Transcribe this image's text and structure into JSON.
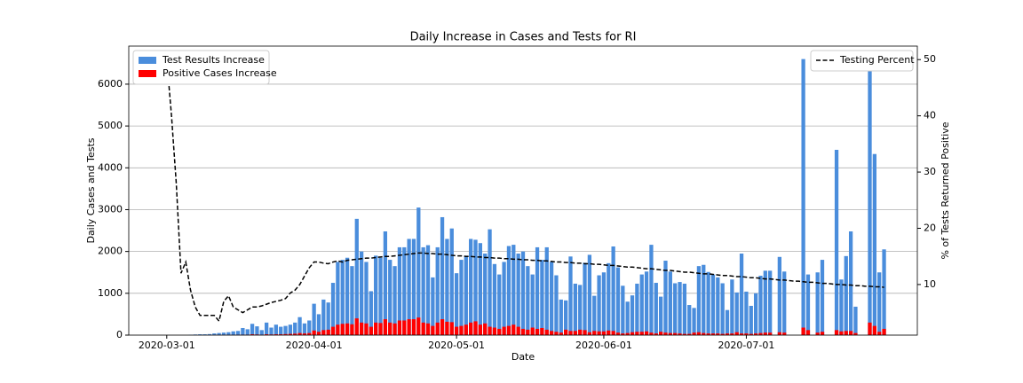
{
  "chart_data": {
    "type": "bar",
    "title": "Daily Increase in Cases and Tests for RI",
    "xlabel": "Date",
    "ylabel": "Daily Cases and Tests",
    "y2label": "% of Tests Returned Positive",
    "x": [
      "2020-03-01",
      "2020-03-02",
      "2020-03-03",
      "2020-03-04",
      "2020-03-05",
      "2020-03-06",
      "2020-03-07",
      "2020-03-08",
      "2020-03-09",
      "2020-03-10",
      "2020-03-11",
      "2020-03-12",
      "2020-03-13",
      "2020-03-14",
      "2020-03-15",
      "2020-03-16",
      "2020-03-17",
      "2020-03-18",
      "2020-03-19",
      "2020-03-20",
      "2020-03-21",
      "2020-03-22",
      "2020-03-23",
      "2020-03-24",
      "2020-03-25",
      "2020-03-26",
      "2020-03-27",
      "2020-03-28",
      "2020-03-29",
      "2020-03-30",
      "2020-03-31",
      "2020-04-01",
      "2020-04-02",
      "2020-04-03",
      "2020-04-04",
      "2020-04-05",
      "2020-04-06",
      "2020-04-07",
      "2020-04-08",
      "2020-04-09",
      "2020-04-10",
      "2020-04-11",
      "2020-04-12",
      "2020-04-13",
      "2020-04-14",
      "2020-04-15",
      "2020-04-16",
      "2020-04-17",
      "2020-04-18",
      "2020-04-19",
      "2020-04-20",
      "2020-04-21",
      "2020-04-22",
      "2020-04-23",
      "2020-04-24",
      "2020-04-25",
      "2020-04-26",
      "2020-04-27",
      "2020-04-28",
      "2020-04-29",
      "2020-04-30",
      "2020-05-01",
      "2020-05-02",
      "2020-05-03",
      "2020-05-04",
      "2020-05-05",
      "2020-05-06",
      "2020-05-07",
      "2020-05-08",
      "2020-05-09",
      "2020-05-10",
      "2020-05-11",
      "2020-05-12",
      "2020-05-13",
      "2020-05-14",
      "2020-05-15",
      "2020-05-16",
      "2020-05-17",
      "2020-05-18",
      "2020-05-19",
      "2020-05-20",
      "2020-05-21",
      "2020-05-22",
      "2020-05-23",
      "2020-05-24",
      "2020-05-25",
      "2020-05-26",
      "2020-05-27",
      "2020-05-28",
      "2020-05-29",
      "2020-05-30",
      "2020-05-31",
      "2020-06-01",
      "2020-06-02",
      "2020-06-03",
      "2020-06-04",
      "2020-06-05",
      "2020-06-06",
      "2020-06-07",
      "2020-06-08",
      "2020-06-09",
      "2020-06-10",
      "2020-06-11",
      "2020-06-12",
      "2020-06-13",
      "2020-06-14",
      "2020-06-15",
      "2020-06-16",
      "2020-06-17",
      "2020-06-18",
      "2020-06-19",
      "2020-06-20",
      "2020-06-21",
      "2020-06-22",
      "2020-06-23",
      "2020-06-24",
      "2020-06-25",
      "2020-06-26",
      "2020-06-27",
      "2020-06-28",
      "2020-06-29",
      "2020-06-30",
      "2020-07-01",
      "2020-07-02",
      "2020-07-03",
      "2020-07-04",
      "2020-07-05",
      "2020-07-06",
      "2020-07-07",
      "2020-07-08",
      "2020-07-09",
      "2020-07-10",
      "2020-07-11",
      "2020-07-12",
      "2020-07-13",
      "2020-07-14",
      "2020-07-15",
      "2020-07-16",
      "2020-07-17",
      "2020-07-18",
      "2020-07-19",
      "2020-07-20",
      "2020-07-21",
      "2020-07-22",
      "2020-07-23",
      "2020-07-24",
      "2020-07-25",
      "2020-07-26",
      "2020-07-27",
      "2020-07-28",
      "2020-07-29",
      "2020-07-30"
    ],
    "series": [
      {
        "name": "Test Results Increase",
        "color": "#4a8ddc",
        "values": [
          0,
          0,
          0,
          0,
          0,
          10,
          15,
          20,
          20,
          25,
          40,
          50,
          60,
          70,
          90,
          100,
          170,
          140,
          270,
          210,
          120,
          300,
          180,
          250,
          200,
          220,
          250,
          300,
          430,
          280,
          350,
          750,
          500,
          850,
          780,
          1250,
          1750,
          1800,
          1850,
          1650,
          2780,
          2000,
          1750,
          1050,
          1900,
          1850,
          2480,
          1800,
          1650,
          2100,
          2100,
          2300,
          2300,
          3050,
          2100,
          2150,
          1380,
          2100,
          2820,
          2300,
          2550,
          1480,
          1800,
          1900,
          2300,
          2280,
          2200,
          1950,
          2530,
          1700,
          1450,
          1750,
          2130,
          2160,
          1950,
          2000,
          1650,
          1450,
          2100,
          1800,
          2100,
          1750,
          1430,
          850,
          830,
          1880,
          1230,
          1200,
          1730,
          1920,
          940,
          1430,
          1500,
          1720,
          2120,
          1620,
          1180,
          800,
          950,
          1230,
          1450,
          1520,
          2160,
          1250,
          920,
          1780,
          1520,
          1240,
          1270,
          1230,
          720,
          650,
          1650,
          1680,
          1510,
          1450,
          1380,
          1240,
          600,
          1330,
          1020,
          1950,
          1040,
          700,
          1000,
          1420,
          1540,
          1540,
          null,
          1870,
          1520,
          null,
          null,
          null,
          6600,
          1450,
          null,
          1500,
          1800,
          null,
          null,
          4430,
          1330,
          1890,
          2480,
          680,
          null,
          null,
          6500,
          4330,
          1500,
          2050
        ]
      },
      {
        "name": "Positive Cases Increase",
        "color": "#ff0000",
        "values": [
          0,
          0,
          0,
          0,
          0,
          0,
          1,
          1,
          1,
          2,
          3,
          3,
          4,
          5,
          5,
          8,
          10,
          10,
          20,
          15,
          10,
          20,
          15,
          20,
          20,
          25,
          30,
          35,
          50,
          40,
          50,
          110,
          80,
          120,
          130,
          200,
          250,
          270,
          280,
          260,
          400,
          300,
          280,
          200,
          300,
          290,
          380,
          300,
          280,
          350,
          350,
          380,
          380,
          420,
          300,
          280,
          220,
          300,
          380,
          320,
          310,
          200,
          220,
          250,
          300,
          330,
          250,
          280,
          200,
          180,
          150,
          200,
          220,
          250,
          200,
          150,
          130,
          180,
          150,
          170,
          130,
          100,
          80,
          60,
          130,
          100,
          100,
          130,
          120,
          70,
          100,
          90,
          90,
          110,
          100,
          60,
          40,
          50,
          70,
          80,
          80,
          90,
          60,
          40,
          80,
          60,
          50,
          50,
          40,
          30,
          30,
          60,
          70,
          50,
          40,
          40,
          40,
          30,
          40,
          40,
          70,
          40,
          40,
          30,
          40,
          50,
          60,
          60,
          null,
          70,
          60,
          null,
          null,
          null,
          180,
          120,
          null,
          60,
          80,
          null,
          null,
          120,
          90,
          100,
          100,
          50,
          null,
          null,
          300,
          220,
          80,
          150
        ]
      },
      {
        "name": "Testing Percent",
        "color": "#000000",
        "axis": "y2",
        "values": [
          50,
          40,
          28,
          12,
          14,
          9,
          6,
          4.5,
          4.5,
          4.5,
          4.5,
          3.5,
          7,
          8,
          6,
          5.5,
          5,
          5.5,
          6,
          6,
          6.2,
          6.5,
          6.8,
          7,
          7.2,
          7.5,
          8.5,
          9,
          10,
          11.5,
          13,
          14,
          14,
          13.8,
          13.7,
          14,
          14.2,
          14,
          14.3,
          14.4,
          14.5,
          14.6,
          14.7,
          14.7,
          14.8,
          14.9,
          15,
          15,
          15.1,
          15.2,
          15.3,
          15.4,
          15.5,
          15.6,
          15.6,
          15.5,
          15.5,
          15.4,
          15.4,
          15.3,
          15.2,
          15.1,
          15.1,
          15.0,
          15.0,
          14.9,
          14.9,
          14.8,
          14.8,
          14.7,
          14.7,
          14.6,
          14.6,
          14.5,
          14.5,
          14.4,
          14.4,
          14.3,
          14.3,
          14.2,
          14.2,
          14.1,
          14.0,
          14.0,
          13.9,
          13.9,
          13.8,
          13.8,
          13.7,
          13.7,
          13.6,
          13.6,
          13.5,
          13.4,
          13.4,
          13.3,
          13.2,
          13.1,
          13.1,
          13.0,
          12.9,
          12.8,
          12.8,
          12.7,
          12.6,
          12.5,
          12.5,
          12.4,
          12.3,
          12.2,
          12.2,
          12.1,
          12.0,
          11.9,
          11.9,
          11.8,
          11.7,
          11.6,
          11.6,
          11.5,
          11.4,
          11.4,
          11.3,
          11.2,
          11.2,
          11.1,
          11.0,
          11.0,
          10.9,
          10.8,
          10.8,
          10.7,
          10.6,
          10.6,
          10.5,
          10.4,
          10.4,
          10.3,
          10.2,
          10.2,
          10.1,
          10.0,
          10.0,
          9.9,
          9.9,
          9.8,
          9.8,
          9.7,
          9.7,
          9.6,
          9.6,
          9.5
        ]
      }
    ],
    "xlim": [
      "2020-02-22",
      "2020-08-06"
    ],
    "xticks": [
      "2020-03-01",
      "2020-04-01",
      "2020-05-01",
      "2020-06-01",
      "2020-07-01"
    ],
    "ylim": [
      0,
      6910
    ],
    "yticks": [
      0,
      1000,
      2000,
      3000,
      4000,
      5000,
      6000
    ],
    "y2lim": [
      1,
      52.4
    ],
    "y2ticks": [
      10,
      20,
      30,
      40,
      50
    ],
    "grid": true,
    "legend": "upper left",
    "legend2": "upper right"
  }
}
